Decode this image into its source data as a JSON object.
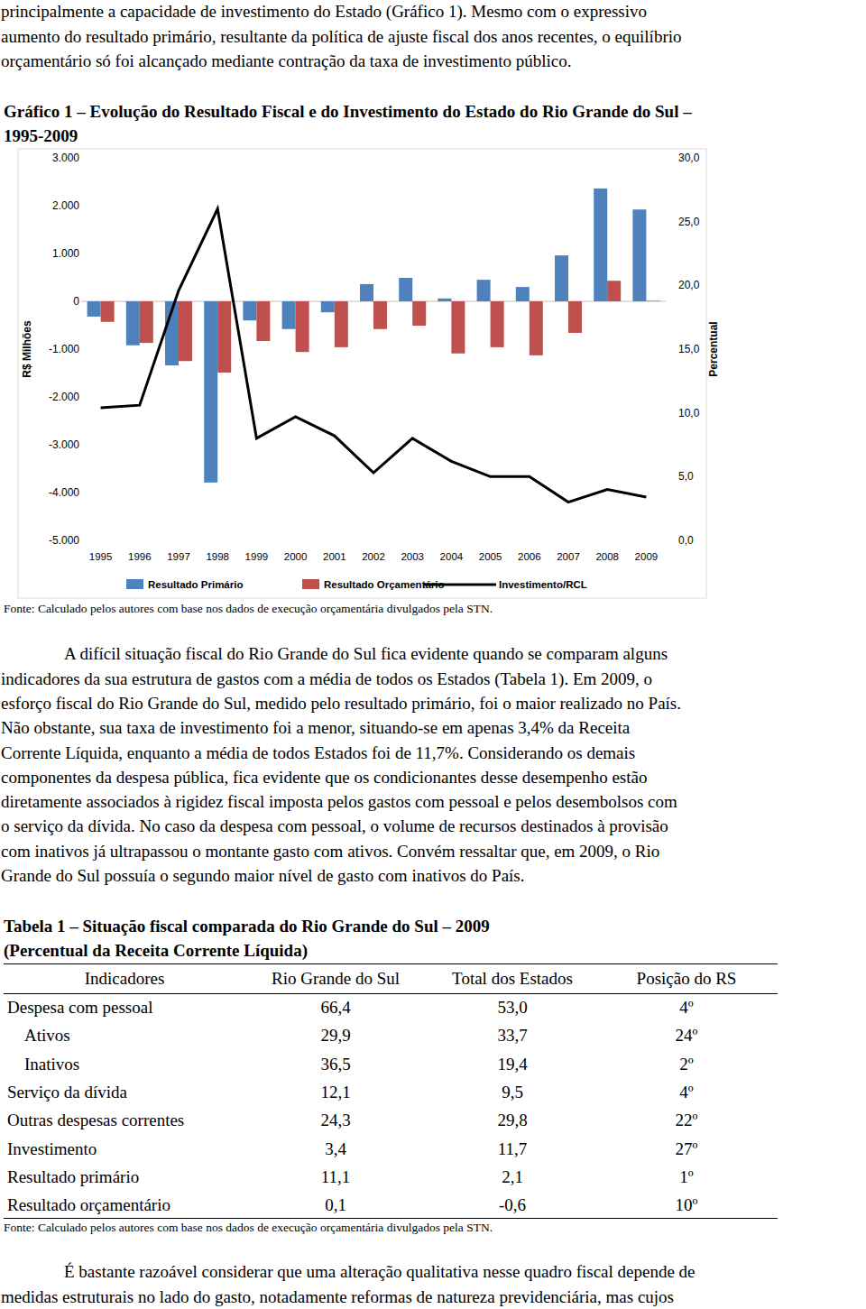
{
  "intro": {
    "indent": false,
    "lines": [
      "principalmente a capacidade de investimento do Estado (Gráfico 1). Mesmo com o expressivo",
      "aumento do resultado primário, resultante da política de ajuste fiscal dos anos recentes, o equilíbrio",
      "orçamentário só foi alcançado mediante contração da taxa de investimento público."
    ]
  },
  "figure": {
    "caption": [
      "Gráfico 1 – Evolução do Resultado Fiscal e do Investimento do Estado do Rio Grande do Sul –",
      "1995-2009"
    ],
    "source": "Fonte: Calculado pelos autores com base nos dados de execução orçamentária divulgados pela STN."
  },
  "chart_data": {
    "type": "bar",
    "categories": [
      "1995",
      "1996",
      "1997",
      "1998",
      "1999",
      "2000",
      "2001",
      "2002",
      "2003",
      "2004",
      "2005",
      "2006",
      "2007",
      "2008",
      "2009"
    ],
    "series": [
      {
        "name": "Resultado Primário",
        "color": "#4f81bd",
        "values": [
          -320,
          -920,
          -1340,
          -3790,
          -400,
          -580,
          -230,
          360,
          490,
          60,
          450,
          300,
          960,
          2360,
          1920
        ]
      },
      {
        "name": "Resultado Orçamentário",
        "color": "#c0504d",
        "values": [
          -430,
          -870,
          -1250,
          -1490,
          -830,
          -1060,
          -960,
          -580,
          -510,
          -1090,
          -960,
          -1130,
          -660,
          430,
          10
        ]
      },
      {
        "name": "Investimento/RCL",
        "color": "#000000",
        "type": "line",
        "axis": "y2",
        "values": [
          10.4,
          10.6,
          19.6,
          26.0,
          8.0,
          9.7,
          8.2,
          5.3,
          8.0,
          6.2,
          5.0,
          5.0,
          3.0,
          4.0,
          3.4
        ]
      }
    ],
    "ylabel": "R$ Milhões",
    "y2label": "Percentual",
    "ylim": [
      -5000,
      3000
    ],
    "yticks": [
      {
        "value": -5000,
        "label": "-5.000"
      },
      {
        "value": -4000,
        "label": "-4.000"
      },
      {
        "value": -3000,
        "label": "-3.000"
      },
      {
        "value": -2000,
        "label": "-2.000"
      },
      {
        "value": -1000,
        "label": "-1.000"
      },
      0,
      {
        "value": 1000,
        "label": "1.000"
      },
      {
        "value": 2000,
        "label": "2.000"
      },
      {
        "value": 3000,
        "label": "3.000"
      }
    ],
    "y2lim": [
      0,
      30
    ],
    "y2ticks": [
      {
        "value": 0,
        "label": "0,0"
      },
      {
        "value": 5,
        "label": "5,0"
      },
      {
        "value": 10,
        "label": "10,0"
      },
      {
        "value": 15,
        "label": "15,0"
      },
      {
        "value": 20,
        "label": "20,0"
      },
      {
        "value": 25,
        "label": "25,0"
      },
      {
        "value": 30,
        "label": "30,0"
      }
    ],
    "grid": false,
    "legend": "bottom"
  },
  "body": {
    "indent": true,
    "lines": [
      "A difícil situação fiscal do Rio Grande do Sul fica evidente quando se comparam alguns",
      "indicadores da sua estrutura de gastos com a média de todos os Estados (Tabela 1). Em 2009, o",
      "esforço fiscal do Rio Grande do Sul, medido pelo resultado primário, foi o maior realizado no País.",
      "Não obstante, sua taxa de investimento foi a menor, situando-se em apenas 3,4% da Receita",
      "Corrente Líquida, enquanto a média de todos Estados foi de 11,7%. Considerando os demais",
      "componentes da despesa pública, fica evidente que os condicionantes desse desempenho estão",
      "diretamente associados à rigidez fiscal imposta pelos gastos com pessoal e pelos desembolsos com",
      "o serviço da dívida. No caso da despesa com pessoal, o volume de recursos destinados à provisão",
      "com inativos já ultrapassou o montante gasto com ativos. Convém ressaltar que, em 2009, o Rio",
      "Grande do Sul possuía o segundo maior nível de gasto com inativos do País."
    ]
  },
  "table": {
    "title": [
      "Tabela 1 – Situação fiscal comparada do Rio Grande do Sul – 2009",
      "(Percentual da Receita Corrente Líquida)"
    ],
    "header": [
      "Indicadores",
      "Rio Grande do Sul",
      "Total dos Estados",
      "Posição do RS"
    ],
    "rows": [
      {
        "level": 0,
        "cells": [
          "Despesa com pessoal",
          "66,4",
          "53,0",
          "4º"
        ]
      },
      {
        "level": 1,
        "cells": [
          "Ativos",
          "29,9",
          "33,7",
          "24º"
        ]
      },
      {
        "level": 1,
        "cells": [
          "Inativos",
          "36,5",
          "19,4",
          "2º"
        ]
      },
      {
        "level": 0,
        "cells": [
          "Serviço da dívida",
          "12,1",
          "9,5",
          "4º"
        ]
      },
      {
        "level": 0,
        "cells": [
          "Outras despesas correntes",
          "24,3",
          "29,8",
          "22º"
        ]
      },
      {
        "level": 0,
        "cells": [
          "Investimento",
          "3,4",
          "11,7",
          "27º"
        ]
      },
      {
        "level": 0,
        "cells": [
          "Resultado primário",
          "11,1",
          "2,1",
          "1º"
        ]
      },
      {
        "level": 0,
        "cells": [
          "Resultado orçamentário",
          "0,1",
          "-0,6",
          "10º"
        ]
      }
    ],
    "source": "Fonte: Calculado pelos autores com base nos dados de execução orçamentária divulgados pela STN."
  },
  "closing": {
    "indent": true,
    "lines": [
      "É bastante razoável considerar que uma alteração qualitativa nesse quadro fiscal depende de",
      "medidas estruturais no lado do gasto, notadamente reformas de natureza previdenciária, mas cujos"
    ]
  }
}
